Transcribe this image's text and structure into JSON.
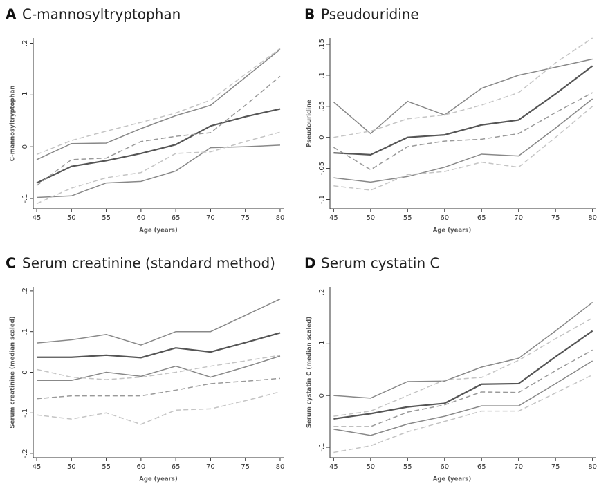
{
  "chart_data": [
    {
      "type": "line",
      "label": "A",
      "title": "C-mannosyltryptophan",
      "ylabel": "C-mannosyltryptophan",
      "xlabel": "Age (years)",
      "x": [
        45,
        50,
        55,
        60,
        65,
        70,
        75,
        80
      ],
      "xlim": [
        44.5,
        80.5
      ],
      "xticks": [
        45,
        50,
        55,
        60,
        65,
        70,
        75,
        80
      ],
      "ylim": [
        -0.12,
        0.21
      ],
      "yticks": [
        {
          "value": -0.1,
          "label": "-.1"
        },
        0,
        {
          "value": 0.1,
          "label": ".1"
        },
        {
          "value": 0.2,
          "label": ".2"
        }
      ],
      "series": [
        {
          "color": "#888888",
          "dash": false,
          "values": [
            -0.025,
            0.006,
            0.007,
            0.035,
            0.06,
            0.08,
            0.134,
            0.188
          ]
        },
        {
          "color": "#555555",
          "dash": false,
          "values": [
            -0.07,
            -0.038,
            -0.027,
            -0.013,
            0.004,
            0.04,
            0.058,
            0.073
          ]
        },
        {
          "color": "#888888",
          "dash": false,
          "values": [
            -0.098,
            -0.095,
            -0.07,
            -0.067,
            -0.047,
            -0.002,
            0.0,
            0.003
          ]
        },
        {
          "color": "#999999",
          "dash": true,
          "values": [
            -0.075,
            -0.025,
            -0.022,
            0.01,
            0.02,
            0.027,
            0.08,
            0.136
          ]
        },
        {
          "color": "#c4c4c4",
          "dash": true,
          "values": [
            -0.015,
            0.012,
            0.03,
            0.047,
            0.065,
            0.09,
            0.14,
            0.19
          ]
        },
        {
          "color": "#c4c4c4",
          "dash": true,
          "values": [
            -0.11,
            -0.08,
            -0.06,
            -0.05,
            -0.013,
            -0.01,
            0.01,
            0.028
          ]
        }
      ]
    },
    {
      "type": "line",
      "label": "B",
      "title": "Pseudouridine",
      "ylabel": "Pseudouridine",
      "xlabel": "Age (years)",
      "x": [
        45,
        50,
        55,
        60,
        65,
        70,
        75,
        80
      ],
      "xlim": [
        44.5,
        80.5
      ],
      "xticks": [
        45,
        50,
        55,
        60,
        65,
        70,
        75,
        80
      ],
      "ylim": [
        -0.115,
        0.16
      ],
      "yticks": [
        {
          "value": -0.1,
          "label": "-.1"
        },
        {
          "value": -0.05,
          "label": "-.05"
        },
        0,
        {
          "value": 0.05,
          "label": ".05"
        },
        {
          "value": 0.1,
          "label": ".1"
        },
        {
          "value": 0.15,
          "label": ".15"
        }
      ],
      "series": [
        {
          "color": "#888888",
          "dash": false,
          "values": [
            0.057,
            0.006,
            0.058,
            0.036,
            0.079,
            0.1,
            0.113,
            0.126
          ]
        },
        {
          "color": "#555555",
          "dash": false,
          "values": [
            -0.025,
            -0.028,
            0.0,
            0.004,
            0.02,
            0.028,
            0.07,
            0.115
          ]
        },
        {
          "color": "#888888",
          "dash": false,
          "values": [
            -0.065,
            -0.072,
            -0.063,
            -0.048,
            -0.027,
            -0.03,
            0.015,
            0.062
          ]
        },
        {
          "color": "#999999",
          "dash": true,
          "values": [
            -0.016,
            -0.052,
            -0.015,
            -0.006,
            -0.003,
            0.006,
            0.04,
            0.072
          ]
        },
        {
          "color": "#c4c4c4",
          "dash": true,
          "values": [
            0.0,
            0.01,
            0.03,
            0.036,
            0.052,
            0.072,
            0.12,
            0.16
          ]
        },
        {
          "color": "#c4c4c4",
          "dash": true,
          "values": [
            -0.078,
            -0.085,
            -0.06,
            -0.055,
            -0.04,
            -0.048,
            0.0,
            0.05
          ]
        }
      ]
    },
    {
      "type": "line",
      "label": "C",
      "title": "Serum creatinine (standard method)",
      "ylabel": "Serum creatinine (median scaled)",
      "xlabel": "Age (years)",
      "x": [
        45,
        50,
        55,
        60,
        65,
        70,
        75,
        80
      ],
      "xlim": [
        44.5,
        80.5
      ],
      "xticks": [
        45,
        50,
        55,
        60,
        65,
        70,
        75,
        80
      ],
      "ylim": [
        -0.21,
        0.21
      ],
      "yticks": [
        {
          "value": -0.2,
          "label": "-.2"
        },
        {
          "value": -0.1,
          "label": "-.1"
        },
        0,
        {
          "value": 0.1,
          "label": ".1"
        },
        {
          "value": 0.2,
          "label": ".2"
        }
      ],
      "series": [
        {
          "color": "#888888",
          "dash": false,
          "values": [
            0.072,
            0.08,
            0.093,
            0.067,
            0.1,
            0.1,
            0.14,
            0.18
          ]
        },
        {
          "color": "#555555",
          "dash": false,
          "values": [
            0.037,
            0.037,
            0.042,
            0.036,
            0.06,
            0.05,
            0.073,
            0.097
          ]
        },
        {
          "color": "#888888",
          "dash": false,
          "values": [
            -0.02,
            -0.02,
            0.0,
            -0.01,
            0.015,
            -0.012,
            0.013,
            0.04
          ]
        },
        {
          "color": "#999999",
          "dash": true,
          "values": [
            -0.065,
            -0.058,
            -0.058,
            -0.058,
            -0.044,
            -0.028,
            -0.022,
            -0.015
          ]
        },
        {
          "color": "#c4c4c4",
          "dash": true,
          "values": [
            0.007,
            -0.012,
            -0.018,
            -0.012,
            0.0,
            0.015,
            0.028,
            0.042
          ]
        },
        {
          "color": "#c4c4c4",
          "dash": true,
          "values": [
            -0.105,
            -0.115,
            -0.1,
            -0.128,
            -0.093,
            -0.09,
            -0.07,
            -0.048
          ]
        }
      ]
    },
    {
      "type": "line",
      "label": "D",
      "title": "Serum cystatin C",
      "ylabel": "Serum cystatin C (median scaled)",
      "xlabel": "Age (years)",
      "x": [
        45,
        50,
        55,
        60,
        65,
        70,
        75,
        80
      ],
      "xlim": [
        44.5,
        80.5
      ],
      "xticks": [
        45,
        50,
        55,
        60,
        65,
        70,
        75,
        80
      ],
      "ylim": [
        -0.12,
        0.21
      ],
      "yticks": [
        {
          "value": -0.1,
          "label": "-.1"
        },
        0,
        {
          "value": 0.1,
          "label": ".1"
        },
        {
          "value": 0.2,
          "label": ".2"
        }
      ],
      "series": [
        {
          "color": "#888888",
          "dash": false,
          "values": [
            0.0,
            -0.005,
            0.027,
            0.028,
            0.055,
            0.072,
            0.125,
            0.18
          ]
        },
        {
          "color": "#555555",
          "dash": false,
          "values": [
            -0.045,
            -0.035,
            -0.022,
            -0.015,
            0.022,
            0.023,
            0.075,
            0.125
          ]
        },
        {
          "color": "#888888",
          "dash": false,
          "values": [
            -0.065,
            -0.077,
            -0.055,
            -0.04,
            -0.02,
            -0.02,
            0.023,
            0.067
          ]
        },
        {
          "color": "#999999",
          "dash": true,
          "values": [
            -0.06,
            -0.06,
            -0.032,
            -0.018,
            0.007,
            0.006,
            0.048,
            0.088
          ]
        },
        {
          "color": "#c4c4c4",
          "dash": true,
          "values": [
            -0.04,
            -0.03,
            0.0,
            0.03,
            0.035,
            0.068,
            0.11,
            0.15
          ]
        },
        {
          "color": "#c4c4c4",
          "dash": true,
          "values": [
            -0.11,
            -0.097,
            -0.07,
            -0.05,
            -0.03,
            -0.03,
            0.005,
            0.04
          ]
        }
      ]
    }
  ]
}
